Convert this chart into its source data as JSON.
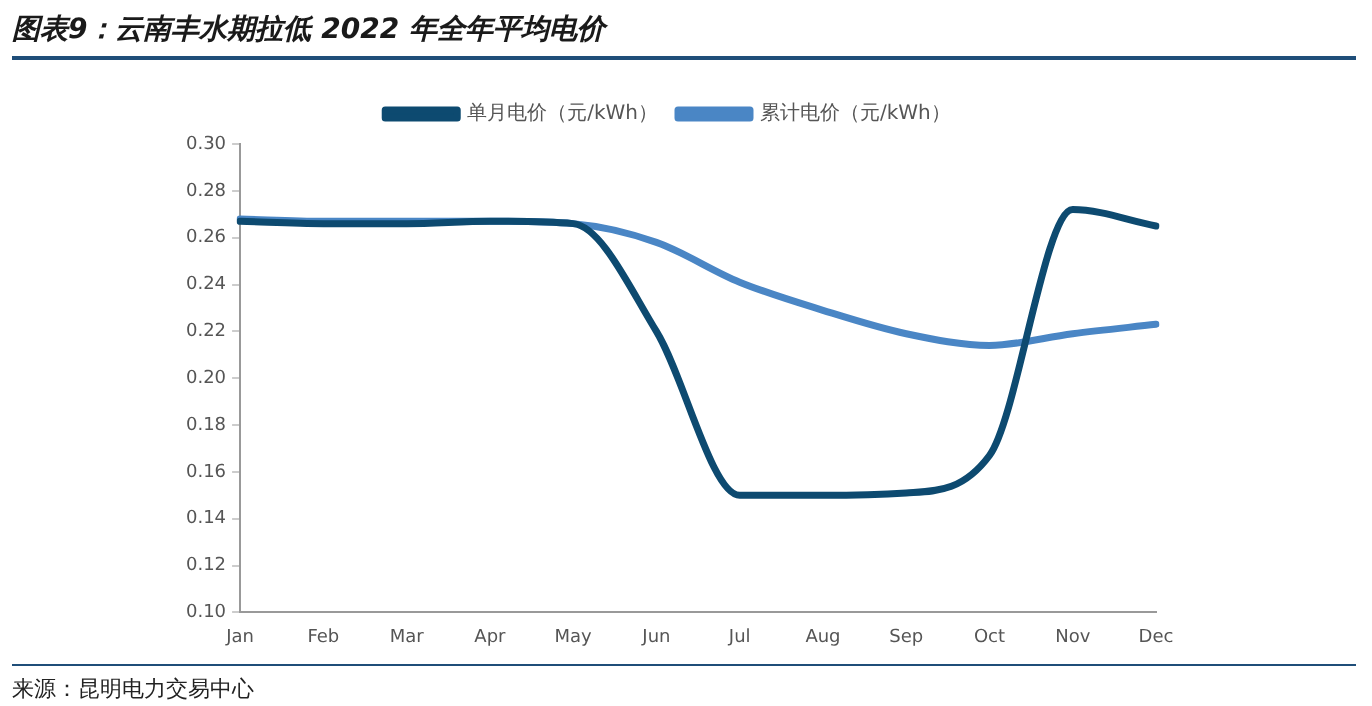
{
  "chart_data": {
    "type": "line",
    "title": "图表9：云南丰水期拉低 2022 年全年平均电价",
    "categories": [
      "Jan",
      "Feb",
      "Mar",
      "Apr",
      "May",
      "Jun",
      "Jul",
      "Aug",
      "Sep",
      "Oct",
      "Nov",
      "Dec"
    ],
    "series": [
      {
        "name": "单月电价（元/kWh）",
        "color": "#0d4a70",
        "values": [
          0.267,
          0.266,
          0.266,
          0.267,
          0.266,
          0.22,
          0.15,
          0.15,
          0.151,
          0.167,
          0.272,
          0.265
        ]
      },
      {
        "name": "累计电价（元/kWh）",
        "color": "#4a86c5",
        "values": [
          0.268,
          0.267,
          0.267,
          0.267,
          0.266,
          0.258,
          0.241,
          0.229,
          0.219,
          0.214,
          0.219,
          0.223
        ]
      }
    ],
    "ylim": [
      0.1,
      0.3
    ],
    "yticks": [
      {
        "value": 0.1,
        "label": "0.10"
      },
      {
        "value": 0.12,
        "label": "0.12"
      },
      {
        "value": 0.14,
        "label": "0.14"
      },
      {
        "value": 0.16,
        "label": "0.16"
      },
      {
        "value": 0.18,
        "label": "0.18"
      },
      {
        "value": 0.2,
        "label": "0.20"
      },
      {
        "value": 0.22,
        "label": "0.22"
      },
      {
        "value": 0.24,
        "label": "0.24"
      },
      {
        "value": 0.26,
        "label": "0.26"
      },
      {
        "value": 0.28,
        "label": "0.28"
      },
      {
        "value": 0.3,
        "label": "0.30"
      }
    ],
    "grid": false,
    "legend": "top",
    "marker": "none",
    "line_style": "solid",
    "annotations": [
      "来源：昆明电力交易中心"
    ]
  }
}
